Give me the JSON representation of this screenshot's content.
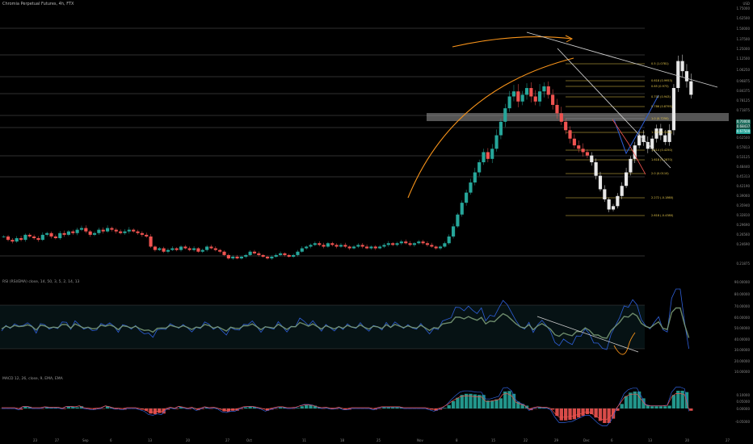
{
  "header": {
    "title": "Chromia Perpetual Futures, 4h, FTX",
    "currency": "USD"
  },
  "price_axis": {
    "labels": [
      "1.75000",
      "1.62500",
      "1.50000",
      "1.37500",
      "1.25000",
      "1.12500",
      "1.06250",
      "0.96875",
      "0.84375",
      "0.78125",
      "0.71875",
      "0.65625",
      "0.62500",
      "0.57813",
      "0.53125",
      "0.48440",
      "0.45313",
      "0.42190",
      "0.39060",
      "0.35940",
      "0.32810",
      "0.29690",
      "0.26560",
      "0.24690",
      "0.21875"
    ]
  },
  "price_tags": {
    "current": "0.70000",
    "second": "0.68437",
    "third": "0.67500"
  },
  "fib_levels": [
    "0.5 (1.0781)",
    "0.618 (0.9953)",
    "0.65 (0.973)",
    "0.702 (0.943)",
    "0.786 (0.8795)",
    "1.0 (0.7250)",
    "1.272 (0.5280)",
    "1.414 (0.4250)",
    "1.618 (0.2870)",
    "2.0 (0.0110)",
    "2.272 (-0.1860)",
    "2.618 (-0.4380)"
  ],
  "rsi": {
    "label": "RSI (RSI/EMA) close, 14, 50, 3, 5, 2, 14, 13",
    "axis": [
      "90.00000",
      "80.00000",
      "70.00000",
      "60.00000",
      "50.00000",
      "40.00000",
      "30.00000",
      "20.00000",
      "10.00000"
    ]
  },
  "macd": {
    "label": "MACD 12, 26, close, 9, EMA, EMA",
    "axis": [
      "0.10000",
      "0.05000",
      "0.00000",
      "-0.05000"
    ]
  },
  "time_axis": [
    "23",
    "27",
    "Sep",
    "6",
    "13",
    "20",
    "27",
    "Oct",
    "11",
    "18",
    "25",
    "Nov",
    "8",
    "15",
    "22",
    "29",
    "Dec",
    "6",
    "13",
    "20",
    "27"
  ],
  "colors": {
    "up": "#26a69a",
    "down": "#ef5350",
    "arc": "#f7931a",
    "fib": "#e6c84b",
    "blue": "#2e5fd8"
  },
  "chart_data": {
    "type": "candlestick",
    "ylim": [
      0.21875,
      1.75
    ],
    "close_series": [
      0.42,
      0.4,
      0.39,
      0.41,
      0.4,
      0.43,
      0.42,
      0.41,
      0.4,
      0.43,
      0.44,
      0.42,
      0.41,
      0.44,
      0.43,
      0.45,
      0.44,
      0.46,
      0.47,
      0.45,
      0.43,
      0.44,
      0.46,
      0.45,
      0.47,
      0.46,
      0.45,
      0.44,
      0.45,
      0.46,
      0.45,
      0.44,
      0.43,
      0.42,
      0.36,
      0.34,
      0.35,
      0.33,
      0.34,
      0.35,
      0.34,
      0.36,
      0.35,
      0.34,
      0.35,
      0.33,
      0.34,
      0.36,
      0.35,
      0.34,
      0.33,
      0.31,
      0.29,
      0.3,
      0.29,
      0.3,
      0.31,
      0.33,
      0.32,
      0.31,
      0.3,
      0.29,
      0.3,
      0.31,
      0.32,
      0.31,
      0.3,
      0.31,
      0.33,
      0.35,
      0.36,
      0.37,
      0.38,
      0.37,
      0.36,
      0.38,
      0.37,
      0.36,
      0.37,
      0.36,
      0.35,
      0.36,
      0.37,
      0.36,
      0.35,
      0.36,
      0.35,
      0.36,
      0.37,
      0.38,
      0.37,
      0.38,
      0.39,
      0.38,
      0.37,
      0.38,
      0.39,
      0.38,
      0.37,
      0.36,
      0.35,
      0.36,
      0.38,
      0.42,
      0.48,
      0.55,
      0.62,
      0.68,
      0.74,
      0.8,
      0.86,
      0.92,
      0.88,
      0.94,
      1.02,
      1.1,
      1.18,
      1.25,
      1.28,
      1.22,
      1.26,
      1.3,
      1.25,
      1.22,
      1.28,
      1.31,
      1.26,
      1.2,
      1.15,
      1.1,
      1.05,
      1.0,
      0.96,
      0.94,
      0.92,
      0.9,
      0.86,
      0.78,
      0.7,
      0.64,
      0.58,
      0.6,
      0.66,
      0.72,
      0.8,
      0.88,
      0.96,
      1.02,
      0.98,
      0.94,
      1.0,
      1.06,
      1.02,
      0.98,
      1.05,
      1.3,
      1.46,
      1.4,
      1.34,
      1.26
    ]
  }
}
